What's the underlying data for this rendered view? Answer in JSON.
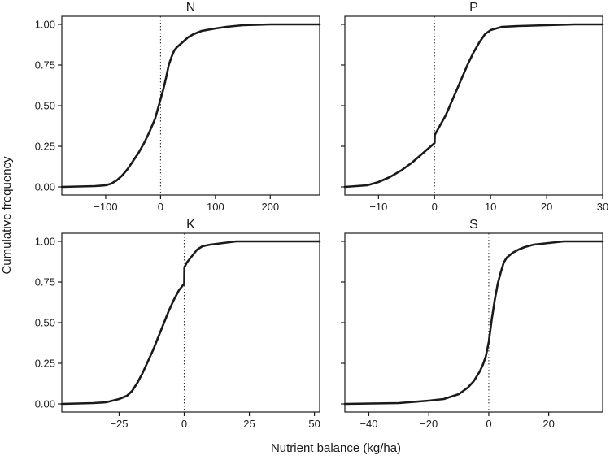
{
  "figure": {
    "xlabel": "Nutrient balance (kg/ha)",
    "ylabel": "Cumulative frequency"
  },
  "colors": {
    "curve": "#1a1a1a",
    "frame": "#1a1a1a",
    "reference_line": "#333333",
    "background": "#ffffff"
  },
  "chart_data": [
    {
      "type": "line",
      "title": "N",
      "xlim": [
        -180,
        290
      ],
      "ylim": [
        -0.05,
        1.05
      ],
      "x_ticks": [
        -100,
        0,
        100,
        200
      ],
      "x_tick_labels": [
        "−100",
        "0",
        "100",
        "200"
      ],
      "y_ticks": [
        0,
        0.25,
        0.5,
        0.75,
        1.0
      ],
      "y_tick_labels": [
        "0.00",
        "0.25",
        "0.50",
        "0.75",
        "1.00"
      ],
      "reference_line_x": 0,
      "series": [
        {
          "x": [
            -180,
            -120,
            -100,
            -90,
            -80,
            -70,
            -60,
            -50,
            -40,
            -30,
            -20,
            -10,
            0,
            5,
            10,
            15,
            20,
            25,
            30,
            40,
            50,
            60,
            75,
            100,
            120,
            150,
            200,
            250,
            290
          ],
          "y": [
            0.0,
            0.005,
            0.01,
            0.02,
            0.04,
            0.07,
            0.11,
            0.16,
            0.21,
            0.27,
            0.34,
            0.42,
            0.54,
            0.6,
            0.67,
            0.75,
            0.8,
            0.84,
            0.86,
            0.89,
            0.92,
            0.94,
            0.96,
            0.975,
            0.985,
            0.995,
            1.0,
            1.0,
            1.0
          ]
        }
      ]
    },
    {
      "type": "line",
      "title": "P",
      "xlim": [
        -16,
        30
      ],
      "ylim": [
        -0.05,
        1.05
      ],
      "x_ticks": [
        -10,
        0,
        10,
        20,
        30
      ],
      "x_tick_labels": [
        "−10",
        "0",
        "10",
        "20",
        "30"
      ],
      "y_ticks": [
        0,
        0.25,
        0.5,
        0.75,
        1.0
      ],
      "y_tick_labels": [
        "0.00",
        "0.25",
        "0.50",
        "0.75",
        "1.00"
      ],
      "reference_line_x": 0,
      "series": [
        {
          "x": [
            -16,
            -12,
            -10,
            -8,
            -6,
            -4,
            -2,
            -1,
            0,
            0.05,
            1,
            2,
            3,
            4,
            5,
            6,
            7,
            8,
            9,
            10,
            12,
            15,
            20,
            25,
            30
          ],
          "y": [
            0.0,
            0.01,
            0.03,
            0.06,
            0.1,
            0.15,
            0.21,
            0.24,
            0.27,
            0.32,
            0.38,
            0.44,
            0.52,
            0.6,
            0.68,
            0.76,
            0.83,
            0.89,
            0.94,
            0.965,
            0.985,
            0.99,
            0.995,
            1.0,
            1.0
          ]
        }
      ]
    },
    {
      "type": "line",
      "title": "K",
      "xlim": [
        -47,
        52
      ],
      "ylim": [
        -0.05,
        1.05
      ],
      "x_ticks": [
        -25,
        0,
        25,
        50
      ],
      "x_tick_labels": [
        "−25",
        "0",
        "25",
        "50"
      ],
      "y_ticks": [
        0,
        0.25,
        0.5,
        0.75,
        1.0
      ],
      "y_tick_labels": [
        "0.00",
        "0.25",
        "0.50",
        "0.75",
        "1.00"
      ],
      "reference_line_x": 0,
      "series": [
        {
          "x": [
            -47,
            -35,
            -30,
            -25,
            -22,
            -20,
            -18,
            -16,
            -14,
            -12,
            -10,
            -8,
            -6,
            -4,
            -2,
            -1,
            0,
            0.05,
            1,
            2,
            3,
            5,
            7,
            10,
            15,
            20,
            30,
            40,
            52
          ],
          "y": [
            0.0,
            0.005,
            0.01,
            0.03,
            0.05,
            0.08,
            0.13,
            0.19,
            0.26,
            0.33,
            0.41,
            0.49,
            0.57,
            0.64,
            0.7,
            0.72,
            0.74,
            0.84,
            0.87,
            0.89,
            0.91,
            0.95,
            0.97,
            0.98,
            0.99,
            1.0,
            1.0,
            1.0,
            1.0
          ]
        }
      ]
    },
    {
      "type": "line",
      "title": "S",
      "xlim": [
        -48,
        38
      ],
      "ylim": [
        -0.05,
        1.05
      ],
      "x_ticks": [
        -40,
        -20,
        0,
        20
      ],
      "x_tick_labels": [
        "−40",
        "−20",
        "0",
        "20"
      ],
      "y_ticks": [
        0,
        0.25,
        0.5,
        0.75,
        1.0
      ],
      "y_tick_labels": [
        "0.00",
        "0.25",
        "0.50",
        "0.75",
        "1.00"
      ],
      "reference_line_x": 0,
      "series": [
        {
          "x": [
            -48,
            -30,
            -20,
            -15,
            -10,
            -7,
            -5,
            -3,
            -2,
            -1,
            0,
            1,
            2,
            3,
            4,
            5,
            6,
            8,
            10,
            12,
            15,
            20,
            25,
            30,
            38
          ],
          "y": [
            0.0,
            0.005,
            0.02,
            0.03,
            0.06,
            0.1,
            0.14,
            0.2,
            0.24,
            0.29,
            0.38,
            0.52,
            0.64,
            0.74,
            0.81,
            0.87,
            0.9,
            0.93,
            0.95,
            0.965,
            0.98,
            0.99,
            1.0,
            1.0,
            1.0
          ]
        }
      ]
    }
  ]
}
